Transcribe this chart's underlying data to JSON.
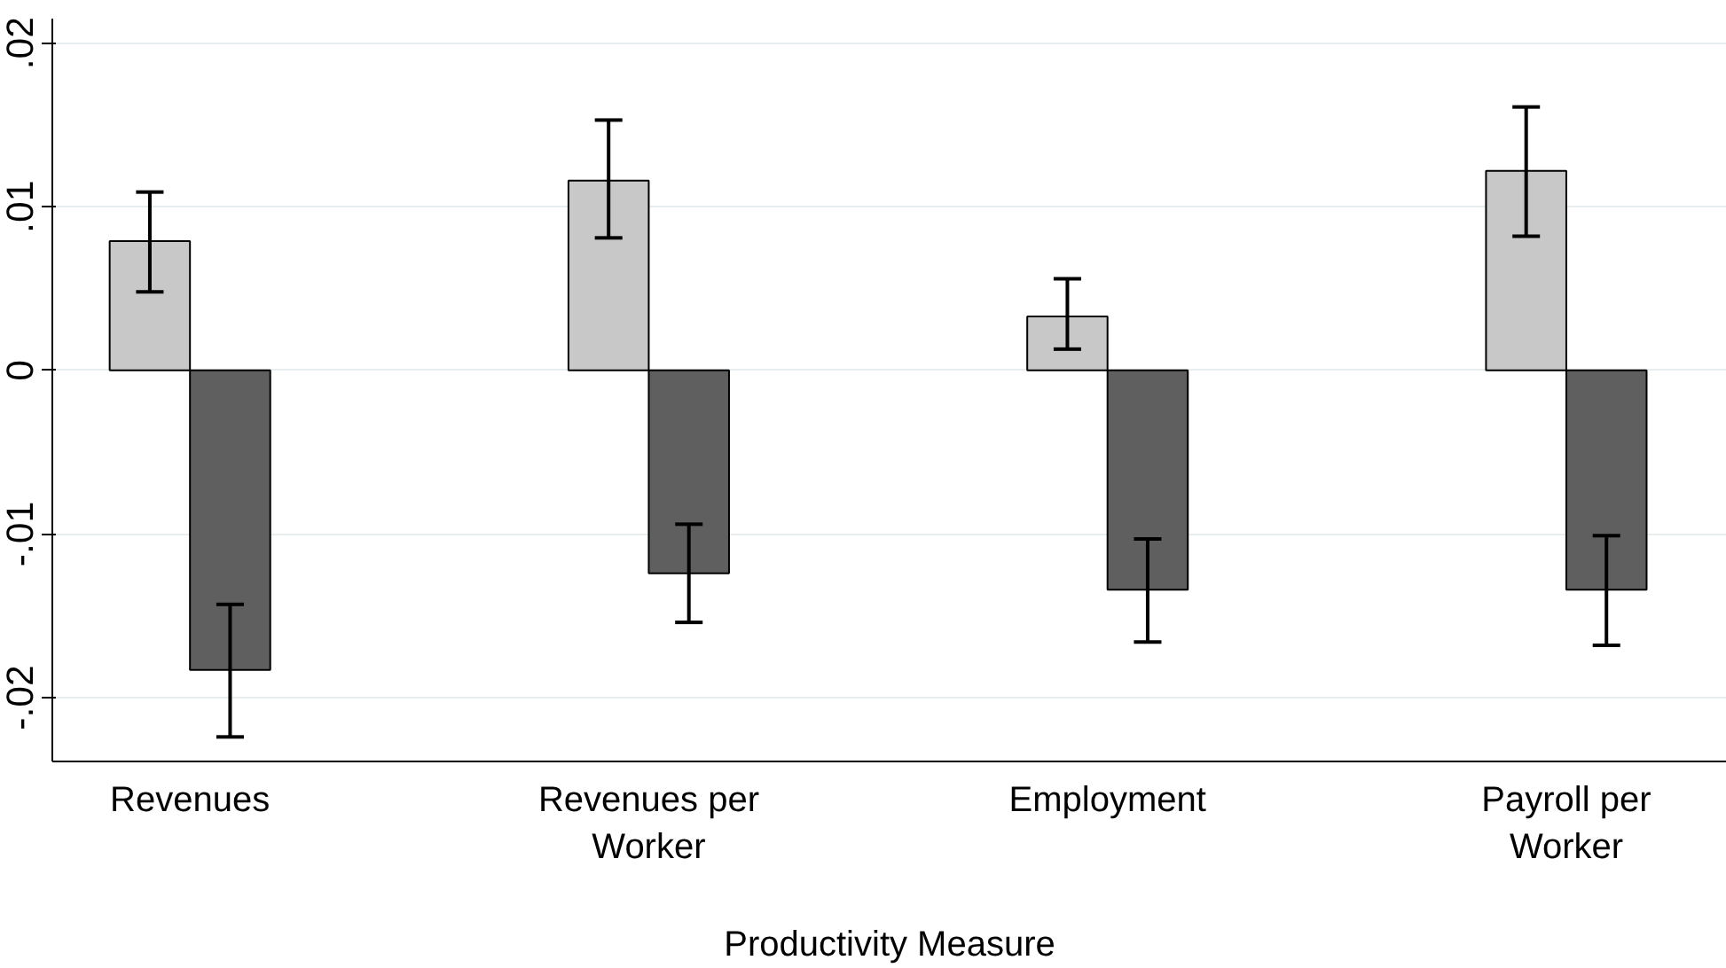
{
  "chart_data": {
    "type": "bar",
    "xlabel": "Productivity Measure",
    "categories": [
      "Revenues",
      "Revenues per Worker",
      "Employment",
      "Payroll per Worker"
    ],
    "series": [
      {
        "color": "#c8c8c8",
        "values": [
          0.0079,
          0.0116,
          0.0033,
          0.0122
        ],
        "errors": [
          [
            0.0048,
            0.0109
          ],
          [
            0.0081,
            0.0153
          ],
          [
            0.0013,
            0.0056
          ],
          [
            0.0082,
            0.0161
          ]
        ]
      },
      {
        "color": "#5f5f5f",
        "values": [
          -0.0183,
          -0.0124,
          -0.0134,
          -0.0134
        ],
        "errors": [
          [
            -0.0224,
            -0.0143
          ],
          [
            -0.0154,
            -0.0094
          ],
          [
            -0.0166,
            -0.0103
          ],
          [
            -0.0168,
            -0.0101
          ]
        ]
      }
    ],
    "ylim": [
      -0.0239,
      0.0215
    ],
    "yticks": [
      {
        "value": -0.02,
        "label": "-.02"
      },
      {
        "value": -0.01,
        "label": "-.01"
      },
      0,
      {
        "value": 0.01,
        "label": ".01"
      },
      {
        "value": 0.02,
        "label": ".02"
      }
    ],
    "grid": "y"
  }
}
